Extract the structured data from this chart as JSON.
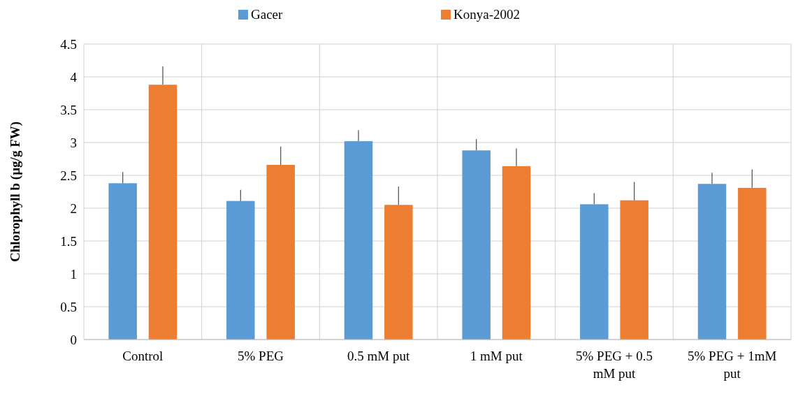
{
  "chart_data": {
    "type": "bar",
    "ylabel": "Chlorophyll b (µg/g FW)",
    "categories": [
      "Control",
      "5% PEG",
      "0.5 mM put",
      "1 mM put",
      "5% PEG + 0.5 mM put",
      "5% PEG + 1mM put"
    ],
    "series": [
      {
        "name": "Gacer",
        "color": "#5b9bd5",
        "values": [
          2.38,
          2.11,
          3.02,
          2.88,
          2.06,
          2.37
        ],
        "errors": [
          [
            2.38,
            2.55
          ],
          [
            2.11,
            2.28
          ],
          [
            3.02,
            3.19
          ],
          [
            2.88,
            3.05
          ],
          [
            2.06,
            2.23
          ],
          [
            2.37,
            2.54
          ]
        ]
      },
      {
        "name": "Konya-2002",
        "color": "#ed7d31",
        "values": [
          3.88,
          2.66,
          2.05,
          2.64,
          2.12,
          2.31
        ],
        "errors": [
          [
            3.88,
            4.16
          ],
          [
            2.66,
            2.94
          ],
          [
            2.05,
            2.33
          ],
          [
            2.64,
            2.91
          ],
          [
            2.12,
            2.4
          ],
          [
            2.31,
            2.59
          ]
        ]
      }
    ],
    "ylim": [
      0,
      4.5
    ],
    "yticks": [
      0,
      0.5,
      1,
      1.5,
      2,
      2.5,
      3,
      3.5,
      4,
      4.5
    ],
    "grid": true,
    "legend": "top"
  }
}
